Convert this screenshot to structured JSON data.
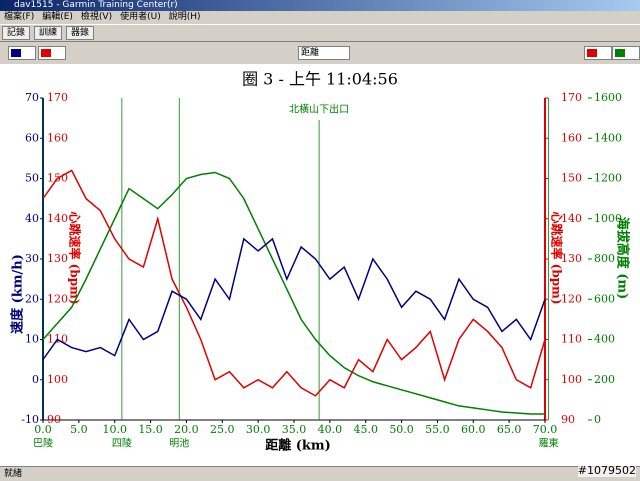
{
  "window": {
    "title": "dav1515 - Garmin Training Center(r)"
  },
  "menu": [
    "檔案(F)",
    "編輯(E)",
    "檢視(V)",
    "使用者(U)",
    "說明(H)"
  ],
  "toolbar": [
    "記錄",
    "訓練",
    "器錄"
  ],
  "dropdown": "距離",
  "status": "就緒",
  "watermark": "#1079502",
  "chart_data": {
    "type": "line",
    "title": "圈 3 - 上午 11:04:56",
    "x_label": "距離 (km)",
    "y_label": "速度 (km/h)",
    "y2_label": "心跳速率 (bpm)",
    "y3_label": "海拔高度 (m)",
    "x": [
      0,
      2,
      4,
      6,
      8,
      10,
      12,
      14,
      16,
      18,
      20,
      22,
      24,
      26,
      28,
      30,
      32,
      34,
      36,
      38,
      40,
      42,
      44,
      46,
      48,
      50,
      52,
      54,
      56,
      58,
      60,
      62,
      64,
      66,
      68,
      70
    ],
    "xlim": [
      0,
      70
    ],
    "xticks": [
      {
        "value": 0,
        "label": "0.0"
      },
      {
        "value": 5,
        "label": "5.0"
      },
      {
        "value": 10,
        "label": "10.0"
      },
      {
        "value": 15,
        "label": "15.0"
      },
      {
        "value": 20,
        "label": "20.0"
      },
      {
        "value": 25,
        "label": "25.0"
      },
      {
        "value": 30,
        "label": "30.0"
      },
      {
        "value": 35,
        "label": "35.0"
      },
      {
        "value": 40,
        "label": "40.0"
      },
      {
        "value": 45,
        "label": "45.0"
      },
      {
        "value": 50,
        "label": "50.0"
      },
      {
        "value": 55,
        "label": "55.0"
      },
      {
        "value": 60,
        "label": "60.0"
      },
      {
        "value": 65,
        "label": "65.0"
      },
      {
        "value": 70,
        "label": "70.0"
      }
    ],
    "ylim": [
      -10,
      70
    ],
    "yticks": [
      -10,
      0,
      10,
      20,
      30,
      40,
      50,
      60,
      70
    ],
    "y2lim": [
      90,
      170
    ],
    "y2ticks": [
      90,
      100,
      110,
      120,
      130,
      140,
      150,
      160,
      170
    ],
    "y3lim": [
      0,
      1600
    ],
    "y3ticks": [
      0,
      200,
      400,
      600,
      800,
      1000,
      1200,
      1400,
      1600
    ],
    "series": [
      {
        "name": "速度",
        "color": "#000080",
        "axis": "y",
        "values": [
          5,
          10,
          8,
          7,
          8,
          6,
          15,
          10,
          12,
          22,
          20,
          15,
          25,
          20,
          35,
          32,
          35,
          25,
          33,
          30,
          25,
          28,
          20,
          30,
          25,
          18,
          22,
          20,
          15,
          25,
          20,
          18,
          12,
          15,
          10,
          20
        ]
      },
      {
        "name": "心跳速率",
        "color": "#e00000",
        "axis": "y2",
        "values": [
          145,
          150,
          152,
          145,
          142,
          135,
          130,
          128,
          140,
          125,
          118,
          110,
          100,
          102,
          98,
          100,
          98,
          102,
          98,
          96,
          100,
          98,
          105,
          102,
          110,
          105,
          108,
          112,
          100,
          110,
          115,
          112,
          108,
          100,
          98,
          110
        ]
      },
      {
        "name": "海拔高度",
        "color": "#008000",
        "axis": "y3",
        "values": [
          400,
          480,
          560,
          700,
          850,
          1000,
          1150,
          1100,
          1050,
          1120,
          1200,
          1220,
          1230,
          1200,
          1100,
          950,
          800,
          650,
          500,
          400,
          320,
          260,
          220,
          190,
          170,
          150,
          130,
          110,
          90,
          70,
          60,
          50,
          40,
          35,
          30,
          30
        ]
      }
    ],
    "annotations": [
      {
        "label": "巴陵",
        "x": 0
      },
      {
        "label": "四陵",
        "x": 11
      },
      {
        "label": "明池",
        "x": 19
      },
      {
        "label": "北橫山下出口",
        "x": 38.5
      },
      {
        "label": "羅東",
        "x": 70.5
      }
    ]
  }
}
